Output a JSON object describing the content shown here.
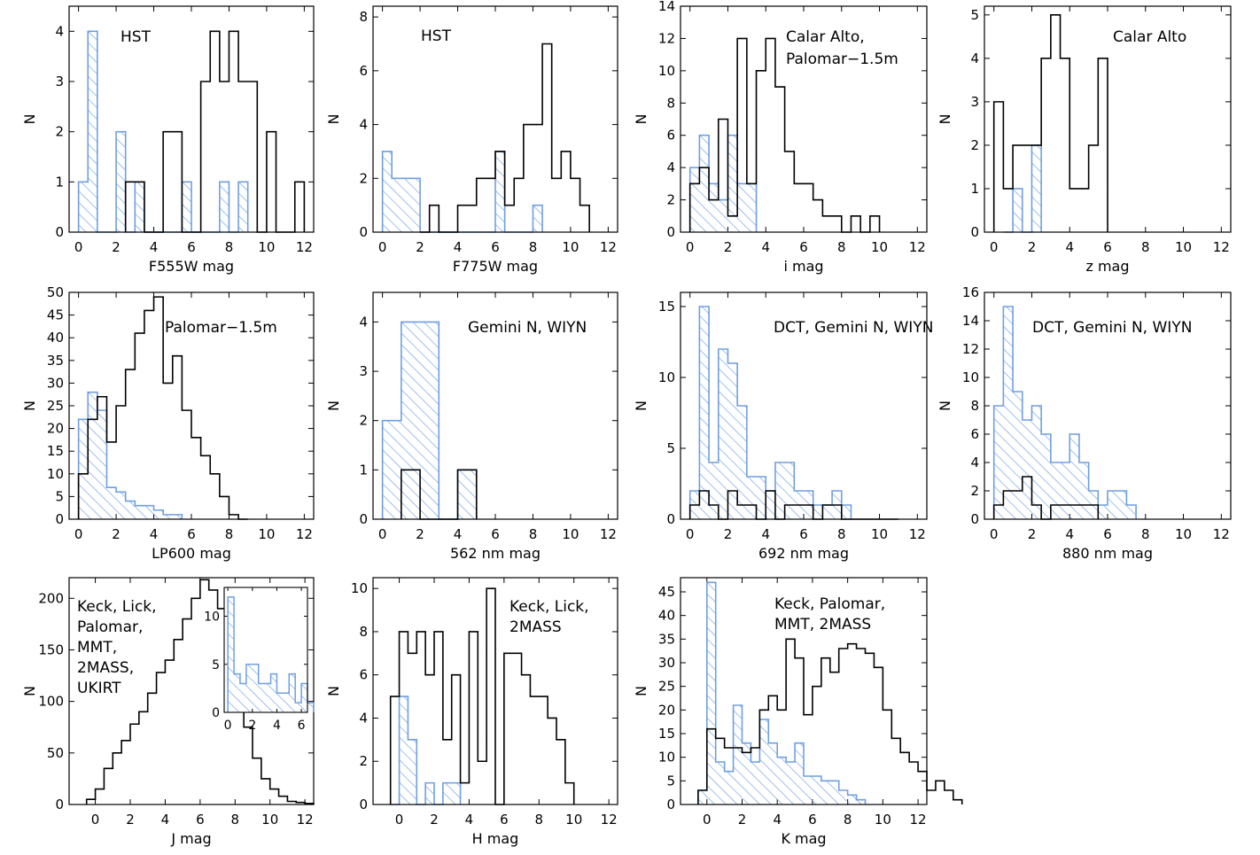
{
  "colors": {
    "black_hist": "#000000",
    "blue_hist": "#6f9fe0"
  },
  "chart_data": [
    {
      "type": "bar",
      "id": "F555W",
      "xlabel": "F555W mag",
      "ylabel": "N",
      "xlim": [
        -0.5,
        12.5
      ],
      "ylim": [
        0,
        4.5
      ],
      "xticks": [
        0,
        2,
        4,
        6,
        8,
        10,
        12
      ],
      "yticks": [
        0,
        1,
        2,
        3,
        4
      ],
      "annotation": [
        "HST"
      ],
      "bin_width": 0.5,
      "black": {
        "start": 2.5,
        "values": [
          1,
          1,
          0,
          0,
          2,
          2,
          0,
          0,
          3,
          4,
          3,
          4,
          3,
          3,
          0,
          2,
          0,
          0,
          1
        ]
      },
      "blue": {
        "start": 0,
        "values": [
          1,
          4,
          0,
          0,
          2,
          0,
          1,
          0,
          0,
          0,
          0,
          1,
          0,
          0,
          0,
          1,
          0,
          1
        ]
      }
    },
    {
      "type": "bar",
      "id": "F775W",
      "xlabel": "F775W mag",
      "ylabel": "N",
      "xlim": [
        -0.5,
        12.5
      ],
      "ylim": [
        0,
        8.4
      ],
      "xticks": [
        0,
        2,
        4,
        6,
        8,
        10,
        12
      ],
      "yticks": [
        0,
        2,
        4,
        6,
        8
      ],
      "annotation": [
        "HST"
      ],
      "bin_width": 0.5,
      "black": {
        "start": 2,
        "values": [
          0,
          1,
          0,
          0,
          1,
          1,
          2,
          2,
          3,
          1,
          2,
          4,
          4,
          7,
          2,
          3,
          2,
          1
        ]
      },
      "blue": {
        "start": 0,
        "values": [
          3,
          2,
          2,
          2,
          0,
          0,
          0,
          0,
          0,
          0,
          0,
          0,
          3,
          0,
          0,
          0,
          1
        ]
      }
    },
    {
      "type": "bar",
      "id": "i",
      "xlabel": "i mag",
      "ylabel": "N",
      "xlim": [
        -0.5,
        12.5
      ],
      "ylim": [
        0,
        14
      ],
      "xticks": [
        0,
        2,
        4,
        6,
        8,
        10,
        12
      ],
      "yticks": [
        0,
        2,
        4,
        6,
        8,
        10,
        12,
        14
      ],
      "annotation": [
        "Calar Alto,",
        "Palomar−1.5m"
      ],
      "bin_width": 0.5,
      "black": {
        "start": 0,
        "values": [
          3,
          4,
          2,
          7,
          1,
          12,
          3,
          10,
          12,
          9,
          5,
          3,
          3,
          2,
          1,
          1,
          0,
          1,
          0,
          1
        ]
      },
      "blue": {
        "start": 0,
        "values": [
          4,
          6,
          3,
          2,
          6,
          3,
          3
        ]
      }
    },
    {
      "type": "bar",
      "id": "z",
      "xlabel": "z mag",
      "ylabel": "N",
      "xlim": [
        -0.5,
        12.5
      ],
      "ylim": [
        0,
        5.2
      ],
      "xticks": [
        0,
        2,
        4,
        6,
        8,
        10,
        12
      ],
      "yticks": [
        0,
        1,
        2,
        3,
        4,
        5
      ],
      "annotation": [
        "Calar Alto"
      ],
      "bin_width": 0.5,
      "black": {
        "start": 0,
        "values": [
          3,
          1,
          2,
          2,
          2,
          4,
          5,
          4,
          1,
          1,
          2,
          4
        ]
      },
      "blue": {
        "start": 0.5,
        "values": [
          0,
          1,
          0,
          2
        ]
      }
    },
    {
      "type": "bar",
      "id": "LP600",
      "xlabel": "LP600 mag",
      "ylabel": "N",
      "xlim": [
        -0.5,
        12.5
      ],
      "ylim": [
        0,
        50
      ],
      "xticks": [
        0,
        2,
        4,
        6,
        8,
        10,
        12
      ],
      "yticks": [
        0,
        5,
        10,
        15,
        20,
        25,
        30,
        35,
        40,
        45,
        50
      ],
      "annotation": [
        "Palomar−1.5m"
      ],
      "bin_width": 0.5,
      "black": {
        "start": 0,
        "values": [
          10,
          22,
          27,
          17,
          25,
          33,
          41,
          46,
          49,
          30,
          36,
          24,
          18,
          14,
          10,
          5,
          1,
          0
        ]
      },
      "blue": {
        "start": 0,
        "values": [
          22,
          28,
          24,
          7,
          6,
          4,
          3,
          3,
          2,
          1,
          1
        ]
      }
    },
    {
      "type": "bar",
      "id": "562nm",
      "xlabel": "562 nm mag",
      "ylabel": "N",
      "xlim": [
        -0.5,
        12.5
      ],
      "ylim": [
        0,
        4.6
      ],
      "xticks": [
        0,
        2,
        4,
        6,
        8,
        10,
        12
      ],
      "yticks": [
        0,
        1,
        2,
        3,
        4
      ],
      "annotation": [
        "Gemini N, WIYN"
      ],
      "bin_width": 1,
      "black": {
        "start": 1,
        "values": [
          1,
          0,
          0,
          1
        ]
      },
      "blue": {
        "start": 0,
        "values": [
          2,
          4,
          4,
          0,
          1
        ]
      }
    },
    {
      "type": "bar",
      "id": "692nm",
      "xlabel": "692 nm mag",
      "ylabel": "N",
      "xlim": [
        -0.5,
        12.5
      ],
      "ylim": [
        0,
        16
      ],
      "xticks": [
        0,
        2,
        4,
        6,
        8,
        10,
        12
      ],
      "yticks": [
        0,
        5,
        10,
        15
      ],
      "annotation": [
        "DCT, Gemini N, WIYN"
      ],
      "bin_width": 0.5,
      "black": {
        "start": 0,
        "values": [
          1,
          2,
          1,
          0,
          2,
          1,
          1,
          0,
          2,
          0,
          1,
          1,
          1,
          0,
          1,
          1,
          0,
          0,
          0,
          0,
          0,
          0
        ]
      },
      "blue": {
        "start": 0,
        "values": [
          2,
          15,
          4,
          12,
          11,
          8,
          3,
          3,
          2,
          4,
          4,
          2,
          2,
          1,
          1,
          2,
          1
        ]
      }
    },
    {
      "type": "bar",
      "id": "880nm",
      "xlabel": "880 nm mag",
      "ylabel": "N",
      "xlim": [
        -0.5,
        12.5
      ],
      "ylim": [
        0,
        16
      ],
      "xticks": [
        0,
        2,
        4,
        6,
        8,
        10,
        12
      ],
      "yticks": [
        0,
        2,
        4,
        6,
        8,
        10,
        12,
        14,
        16
      ],
      "annotation": [
        "DCT, Gemini N, WIYN"
      ],
      "bin_width": 0.5,
      "black": {
        "start": 0,
        "values": [
          1,
          2,
          2,
          3,
          1,
          0,
          1,
          1,
          1,
          1,
          1
        ]
      },
      "blue": {
        "start": 0,
        "values": [
          8,
          15,
          9,
          7,
          8,
          6,
          4,
          4,
          6,
          4,
          2,
          1,
          2,
          2,
          1
        ]
      }
    },
    {
      "type": "bar",
      "id": "J",
      "xlabel": "J mag",
      "ylabel": "N",
      "xlim": [
        -1.5,
        12.5
      ],
      "ylim": [
        0,
        220
      ],
      "xticks": [
        0,
        2,
        4,
        6,
        8,
        10,
        12
      ],
      "yticks": [
        0,
        50,
        100,
        150,
        200
      ],
      "annotation": [
        "Keck, Lick,",
        "Palomar,",
        "MMT,",
        "2MASS,",
        "UKIRT"
      ],
      "bin_width": 0.5,
      "black": {
        "start": -0.5,
        "values": [
          5,
          15,
          35,
          50,
          62,
          78,
          90,
          108,
          128,
          140,
          160,
          180,
          200,
          218,
          208,
          190,
          155,
          105,
          75,
          45,
          25,
          15,
          8,
          3,
          2,
          1
        ]
      },
      "inset": {
        "xlim": [
          -0.3,
          6.5
        ],
        "ylim": [
          0,
          13
        ],
        "xticks": [
          0,
          2,
          4,
          6
        ],
        "yticks": [
          0,
          5,
          10
        ],
        "bin_width": 0.5,
        "blue": {
          "start": 0,
          "values": [
            12,
            4,
            3,
            5,
            5,
            3,
            3,
            4,
            2,
            2,
            4,
            1,
            3,
            1
          ]
        }
      }
    },
    {
      "type": "bar",
      "id": "H",
      "xlabel": "H mag",
      "ylabel": "N",
      "xlim": [
        -1.5,
        12.5
      ],
      "ylim": [
        0,
        10.5
      ],
      "xticks": [
        0,
        2,
        4,
        6,
        8,
        10,
        12
      ],
      "yticks": [
        0,
        2,
        4,
        6,
        8,
        10
      ],
      "annotation": [
        "Keck, Lick,",
        "2MASS"
      ],
      "bin_width": 0.5,
      "black": {
        "start": -0.5,
        "values": [
          5,
          8,
          7,
          8,
          6,
          8,
          3,
          6,
          1,
          8,
          2,
          10,
          0,
          7,
          7,
          6,
          5,
          5,
          4,
          3,
          1
        ]
      },
      "blue": {
        "start": -0.5,
        "values": [
          0,
          5,
          3,
          0,
          1,
          0,
          1,
          1
        ]
      }
    },
    {
      "type": "bar",
      "id": "K",
      "xlabel": "K mag",
      "ylabel": "N",
      "xlim": [
        -1.5,
        12.5
      ],
      "ylim": [
        0,
        48
      ],
      "xticks": [
        0,
        2,
        4,
        6,
        8,
        10,
        12
      ],
      "yticks": [
        0,
        5,
        10,
        15,
        20,
        25,
        30,
        35,
        40,
        45
      ],
      "annotation": [
        "Keck, Palomar,",
        "MMT, 2MASS"
      ],
      "bin_width": 0.5,
      "black": {
        "start": -0.5,
        "values": [
          3,
          16,
          14,
          12,
          12,
          11,
          12,
          20,
          23,
          20,
          35,
          31,
          19,
          25,
          31,
          28,
          33,
          34,
          33,
          32,
          29,
          20,
          14,
          11,
          9,
          7,
          3,
          5,
          3,
          1
        ]
      },
      "blue": {
        "start": -0.5,
        "values": [
          3,
          47,
          9,
          7,
          21,
          13,
          9,
          18,
          13,
          10,
          9,
          13,
          6,
          6,
          5,
          5,
          3,
          2,
          1
        ]
      }
    }
  ]
}
